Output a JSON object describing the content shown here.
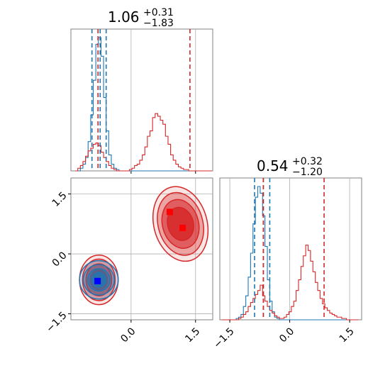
{
  "chart_data": [
    {
      "type": "histogram",
      "panel": "marginal-param-1",
      "title_value": "1.06",
      "title_plus": "+0.31",
      "title_minus": "−1.83",
      "xlim": [
        -1.4,
        1.9
      ],
      "ylim": [
        0,
        1
      ],
      "bins_x": [
        -1.3,
        -1.24,
        -1.18,
        -1.12,
        -1.06,
        -1.0,
        -0.94,
        -0.88,
        -0.82,
        -0.76,
        -0.7,
        -0.64,
        -0.58,
        -0.52,
        -0.46,
        -0.4,
        -0.34,
        -0.28,
        -0.22,
        -0.16,
        -0.1,
        -0.04,
        0.02,
        0.08,
        0.14,
        0.2,
        0.26,
        0.32,
        0.38,
        0.44,
        0.5,
        0.56,
        0.62,
        0.68,
        0.74,
        0.8,
        0.86,
        0.92,
        0.98,
        1.04,
        1.1,
        1.16,
        1.22,
        1.28,
        1.34,
        1.4,
        1.46,
        1.52,
        1.58,
        1.64,
        1.7,
        1.76,
        1.82
      ],
      "series": [
        {
          "name": "",
          "color": "#1f77b4",
          "values": [
            0,
            0,
            0.02,
            0.05,
            0.1,
            0.22,
            0.42,
            0.68,
            0.95,
            1.0,
            0.86,
            0.55,
            0.3,
            0.12,
            0.05,
            0.02,
            0.01,
            0,
            0,
            0,
            0,
            0,
            0,
            0,
            0,
            0,
            0,
            0,
            0,
            0,
            0,
            0,
            0,
            0,
            0,
            0,
            0,
            0,
            0,
            0,
            0,
            0,
            0,
            0,
            0,
            0,
            0,
            0,
            0,
            0,
            0,
            0
          ],
          "quantiles": [
            -0.91,
            -0.72,
            -0.58
          ]
        },
        {
          "name": "",
          "color": "#d62728",
          "values": [
            0,
            0.02,
            0.04,
            0.07,
            0.11,
            0.15,
            0.17,
            0.2,
            0.21,
            0.19,
            0.14,
            0.1,
            0.07,
            0.04,
            0.02,
            0.01,
            0,
            0,
            0,
            0,
            0,
            0.01,
            0.02,
            0.04,
            0.05,
            0.08,
            0.12,
            0.18,
            0.26,
            0.3,
            0.4,
            0.43,
            0.41,
            0.38,
            0.35,
            0.26,
            0.2,
            0.12,
            0.08,
            0.05,
            0.03,
            0.02,
            0.01,
            0.01,
            0,
            0,
            0,
            0,
            0,
            0,
            0,
            0
          ],
          "quantiles": [
            -0.77,
            1.37
          ]
        }
      ]
    },
    {
      "type": "contour",
      "panel": "joint-2d",
      "xlim": [
        -1.4,
        1.9
      ],
      "ylim": [
        -1.65,
        1.9
      ],
      "xticks": [
        "0.0",
        "1.5"
      ],
      "yticks": [
        "1.5",
        "0.0",
        "−1.5"
      ],
      "blobs": [
        {
          "color": "#d62728",
          "cx": 1.15,
          "cy": 0.75,
          "rx": [
            0.62,
            0.52,
            0.42,
            0.3
          ],
          "ry": [
            0.95,
            0.8,
            0.62,
            0.42
          ]
        },
        {
          "color": "#d62728",
          "cx": -0.75,
          "cy": -0.65,
          "rx": [
            0.45,
            0.38,
            0.3,
            0.2
          ],
          "ry": [
            0.62,
            0.52,
            0.4,
            0.25
          ]
        },
        {
          "color": "#1f77b4",
          "cx": -0.75,
          "cy": -0.65,
          "rx": [
            0.45,
            0.36,
            0.26,
            0.16
          ],
          "ry": [
            0.48,
            0.38,
            0.28,
            0.18
          ]
        }
      ],
      "markers": [
        {
          "color": "#ff0000",
          "x": 0.9,
          "y": 1.05
        },
        {
          "color": "#ff0000",
          "x": 1.2,
          "y": 0.65
        },
        {
          "color": "#0000ff",
          "x": -0.78,
          "y": -0.68
        }
      ]
    },
    {
      "type": "histogram",
      "panel": "marginal-param-2",
      "title_value": "0.54",
      "title_plus": "+0.32",
      "title_minus": "−1.20",
      "xlim": [
        -1.75,
        1.8
      ],
      "ylim": [
        0,
        1
      ],
      "xticks": [
        "−1.5",
        "0.0",
        "1.5"
      ],
      "bins_x": [
        -1.7,
        -1.64,
        -1.58,
        -1.52,
        -1.46,
        -1.4,
        -1.34,
        -1.28,
        -1.22,
        -1.16,
        -1.1,
        -1.04,
        -0.98,
        -0.92,
        -0.86,
        -0.8,
        -0.74,
        -0.68,
        -0.62,
        -0.56,
        -0.5,
        -0.44,
        -0.38,
        -0.32,
        -0.26,
        -0.2,
        -0.14,
        -0.08,
        -0.02,
        0.04,
        0.1,
        0.16,
        0.22,
        0.28,
        0.34,
        0.4,
        0.46,
        0.52,
        0.58,
        0.64,
        0.7,
        0.76,
        0.82,
        0.88,
        0.94,
        1.0,
        1.06,
        1.12,
        1.18,
        1.24,
        1.3,
        1.36,
        1.42,
        1.48,
        1.54,
        1.6,
        1.66
      ],
      "series": [
        {
          "name": "",
          "color": "#1f77b4",
          "values": [
            0,
            0,
            0,
            0,
            0,
            0,
            0.01,
            0.02,
            0.04,
            0.1,
            0.18,
            0.32,
            0.5,
            0.72,
            0.92,
            1.0,
            0.95,
            0.78,
            0.55,
            0.3,
            0.14,
            0.06,
            0.02,
            0.01,
            0,
            0,
            0,
            0,
            0,
            0,
            0,
            0,
            0,
            0,
            0,
            0,
            0,
            0,
            0,
            0,
            0,
            0,
            0,
            0,
            0,
            0,
            0,
            0,
            0,
            0,
            0,
            0,
            0,
            0,
            0,
            0
          ],
          "quantiles": [
            -0.88,
            -0.66,
            -0.5
          ]
        },
        {
          "name": "",
          "color": "#d62728",
          "values": [
            0,
            0,
            0,
            0,
            0,
            0,
            0,
            0.01,
            0.02,
            0.04,
            0.06,
            0.1,
            0.13,
            0.16,
            0.19,
            0.22,
            0.26,
            0.18,
            0.14,
            0.1,
            0.07,
            0.05,
            0.03,
            0.02,
            0.01,
            0.01,
            0.02,
            0.04,
            0.06,
            0.1,
            0.14,
            0.22,
            0.3,
            0.4,
            0.48,
            0.56,
            0.52,
            0.44,
            0.36,
            0.28,
            0.22,
            0.16,
            0.12,
            0.09,
            0.07,
            0.05,
            0.04,
            0.03,
            0.02,
            0.02,
            0.01,
            0.01,
            0,
            0,
            0,
            0
          ],
          "quantiles": [
            -0.66,
            0.86
          ]
        }
      ]
    }
  ]
}
